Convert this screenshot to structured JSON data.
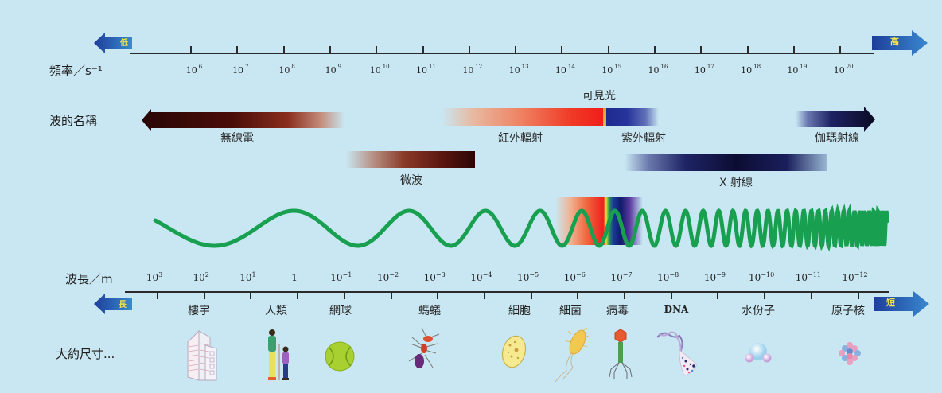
{
  "frequency_axis": {
    "label": "頻率／s⁻¹",
    "low_label": "低",
    "high_label": "高",
    "ticks": [
      {
        "base": "10",
        "exp": "6"
      },
      {
        "base": "10",
        "exp": "7"
      },
      {
        "base": "10",
        "exp": "8"
      },
      {
        "base": "10",
        "exp": "9"
      },
      {
        "base": "10",
        "exp": "10"
      },
      {
        "base": "10",
        "exp": "11"
      },
      {
        "base": "10",
        "exp": "12"
      },
      {
        "base": "10",
        "exp": "13"
      },
      {
        "base": "10",
        "exp": "14"
      },
      {
        "base": "10",
        "exp": "15"
      },
      {
        "base": "10",
        "exp": "16"
      },
      {
        "base": "10",
        "exp": "17"
      },
      {
        "base": "10",
        "exp": "18"
      },
      {
        "base": "10",
        "exp": "19"
      },
      {
        "base": "10",
        "exp": "20"
      }
    ]
  },
  "wave_names": {
    "label": "波的名稱",
    "visible_light": "可見光",
    "bands": [
      {
        "name": "無線電",
        "key": "radio"
      },
      {
        "name": "微波",
        "key": "microwave"
      },
      {
        "name": "紅外輻射",
        "key": "infrared"
      },
      {
        "name": "紫外輻射",
        "key": "ultraviolet"
      },
      {
        "name": "X 射線",
        "key": "xray"
      },
      {
        "name": "伽瑪射線",
        "key": "gamma"
      }
    ]
  },
  "wavelength_axis": {
    "label": "波長／m",
    "long_label": "長",
    "short_label": "短",
    "ticks": [
      {
        "base": "10",
        "exp": "3"
      },
      {
        "base": "10",
        "exp": "2"
      },
      {
        "base": "10",
        "exp": "1"
      },
      {
        "base": "1",
        "exp": ""
      },
      {
        "base": "10",
        "exp": "−1"
      },
      {
        "base": "10",
        "exp": "−2"
      },
      {
        "base": "10",
        "exp": "−3"
      },
      {
        "base": "10",
        "exp": "−4"
      },
      {
        "base": "10",
        "exp": "−5"
      },
      {
        "base": "10",
        "exp": "−6"
      },
      {
        "base": "10",
        "exp": "−7"
      },
      {
        "base": "10",
        "exp": "−8"
      },
      {
        "base": "10",
        "exp": "−9"
      },
      {
        "base": "10",
        "exp": "−10"
      },
      {
        "base": "10",
        "exp": "−11"
      },
      {
        "base": "10",
        "exp": "−12"
      }
    ]
  },
  "size_comparison": {
    "label": "大約尺寸...",
    "objects": [
      {
        "name": "樓宇",
        "icon": "building-icon"
      },
      {
        "name": "人類",
        "icon": "humans-icon"
      },
      {
        "name": "網球",
        "icon": "tennis-ball-icon"
      },
      {
        "name": "螞蟻",
        "icon": "ant-icon"
      },
      {
        "name": "細胞",
        "icon": "cell-icon"
      },
      {
        "name": "細菌",
        "icon": "bacteria-icon"
      },
      {
        "name": "病毒",
        "icon": "virus-icon"
      },
      {
        "name": "DNA",
        "icon": "dna-icon"
      },
      {
        "name": "水份子",
        "icon": "water-molecule-icon"
      },
      {
        "name": "原子核",
        "icon": "atomic-nucleus-icon"
      }
    ]
  },
  "colors": {
    "background": "#c9e7f2",
    "radio": "#3a0a08",
    "infrared": "#f02a1e",
    "ultraviolet": "#1f2a8a",
    "xray": "#0e0e33",
    "gamma": "#0b0b2a",
    "wave_red": "#e0532f",
    "wave_purple": "#8a3aa0",
    "wave_blue": "#2a5aa8",
    "wave_green": "#18a050",
    "arrow_blue": "#1e4fa8"
  }
}
